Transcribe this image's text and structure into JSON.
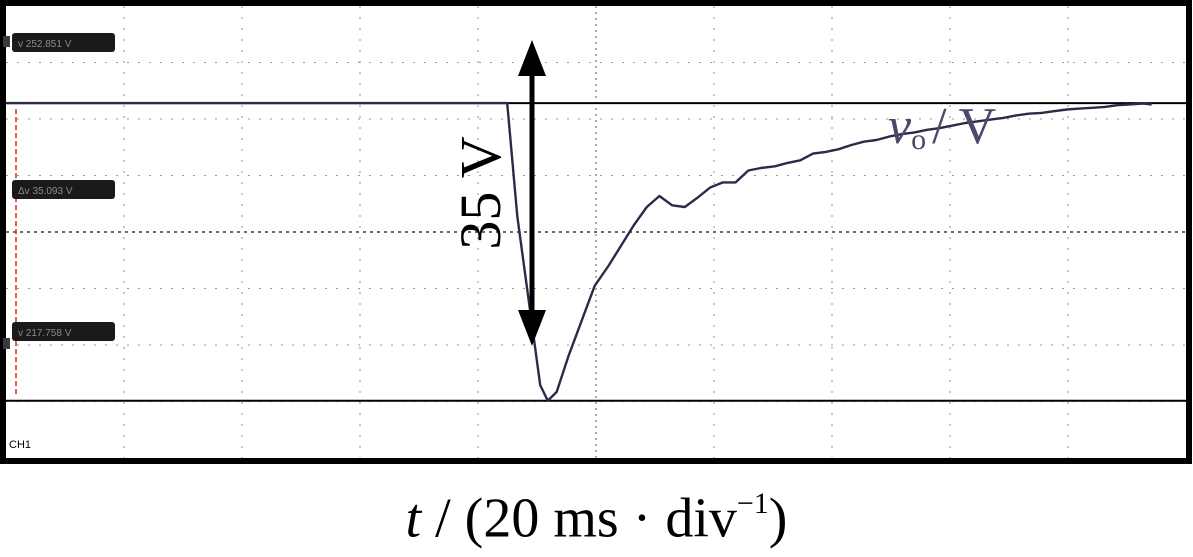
{
  "chart_data": {
    "type": "line",
    "channel_label": "CH1",
    "cursor_readouts": {
      "upper": "v 252.851 V",
      "delta": "Δv 35.093 V",
      "lower": "v 217.758 V"
    },
    "dip_annotation": "35 V",
    "series": [
      {
        "name": "vo / V",
        "name_parts": {
          "main": "v",
          "sub": "o",
          "rest": "/ V"
        },
        "x": [
          0,
          5,
          10,
          15,
          20,
          25,
          30,
          35,
          39.5,
          40.3,
          41.2,
          42.1,
          42.7,
          43.4,
          44.3,
          45.4,
          46.4,
          47.5,
          48.5,
          49.5,
          50.5,
          51.5,
          52.5,
          53.5,
          54.5,
          55.5,
          56.5,
          57.5,
          58.5,
          59.5,
          60.6,
          61.6,
          62.6,
          63.6,
          64.6,
          65.6,
          66.6,
          67.6,
          68.6,
          69.6,
          70.6,
          71.6,
          72.6,
          73.6,
          74.6,
          75.6,
          76.6,
          77.6,
          78.6,
          79.6,
          80.6,
          81.6,
          82.6,
          83.6,
          84.6,
          85.6,
          86.6,
          87.6,
          88.6,
          89.6,
          90.3
        ],
        "y": [
          252.85,
          252.85,
          252.85,
          252.85,
          252.85,
          252.85,
          252.85,
          252.85,
          252.85,
          239.5,
          229.5,
          219.6,
          217.76,
          218.8,
          222.9,
          227.3,
          231.3,
          233.7,
          236.1,
          238.5,
          240.6,
          241.9,
          240.8,
          240.6,
          241.7,
          242.9,
          243.5,
          243.5,
          244.9,
          245.2,
          245.4,
          245.8,
          246.1,
          246.9,
          247.1,
          247.4,
          247.9,
          248.3,
          248.5,
          248.9,
          249.2,
          249.4,
          249.7,
          249.9,
          250.2,
          250.5,
          250.7,
          250.9,
          251.1,
          251.4,
          251.6,
          251.7,
          251.9,
          252.1,
          252.2,
          252.3,
          252.4,
          252.6,
          252.7,
          252.8,
          252.7
        ]
      }
    ],
    "xlabel_parts": {
      "var": "t",
      "rest": " / (20 ms · div",
      "sup": "−1",
      "close": ")"
    },
    "xlim": [
      0,
      93
    ],
    "ylim": [
      211.0,
      264.3
    ],
    "x_divisions": 10,
    "y_divisions": 8,
    "grid": true,
    "colors": {
      "trace": "#2c2b47",
      "cursor": "#e0301e",
      "frame": "#000000",
      "grid": "#9a9a9a",
      "label_box": "#1a1a1a",
      "label_text": "#8a8a8a",
      "annotation": "#4b4969"
    }
  }
}
